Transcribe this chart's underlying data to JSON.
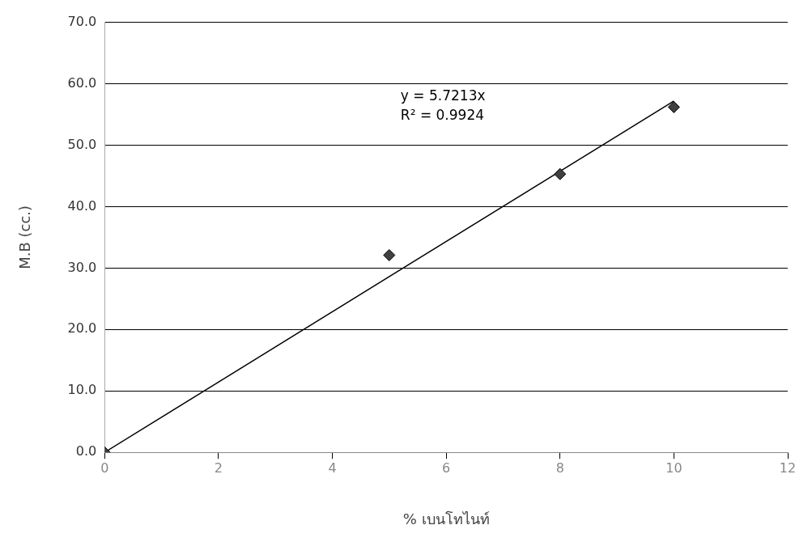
{
  "chart_data": {
    "type": "scatter",
    "xlabel": "% เบนโทไนท์",
    "ylabel": "M.B (cc.)",
    "xlim": [
      0,
      12
    ],
    "xticks": [
      0,
      2,
      4,
      6,
      8,
      10,
      12
    ],
    "ylim": [
      0,
      70
    ],
    "yticks": [
      {
        "value": 0,
        "label": "0.0"
      },
      {
        "value": 10,
        "label": "10.0"
      },
      {
        "value": 20,
        "label": "20.0"
      },
      {
        "value": 30,
        "label": "30.0"
      },
      {
        "value": 40,
        "label": "40.0"
      },
      {
        "value": 50,
        "label": "50.0"
      },
      {
        "value": 60,
        "label": "60.0"
      },
      {
        "value": 70,
        "label": "70.0"
      }
    ],
    "grid": "y",
    "legend": false,
    "series": [
      {
        "type": "scatter",
        "color": "#404040",
        "marker": "diamond",
        "x": [
          0,
          5,
          8,
          10
        ],
        "values": [
          0,
          32.1,
          45.3,
          56.2
        ]
      },
      {
        "type": "line",
        "color": "#000000",
        "marker": "none",
        "line_style": "solid",
        "x": [
          0,
          10
        ],
        "values": [
          0,
          57.2
        ]
      }
    ],
    "annotations": [
      "y = 5.7213x",
      "R² = 0.9924"
    ]
  }
}
